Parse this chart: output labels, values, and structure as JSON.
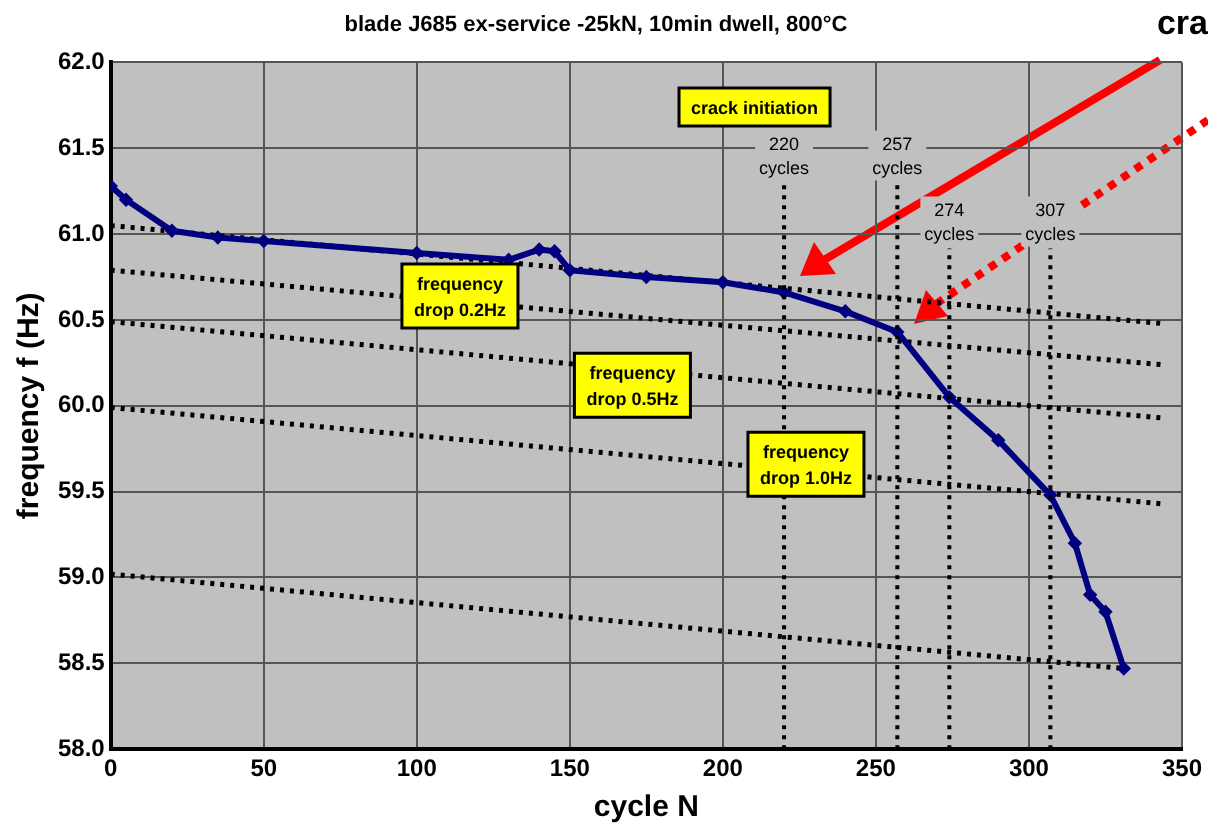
{
  "chart_data": {
    "type": "line",
    "title": "blade J685 ex-service -25kN, 10min dwell, 800°C",
    "xlabel": "cycle N",
    "ylabel": "frequency f (Hz)",
    "xlim": [
      0,
      350
    ],
    "xticks": [
      0,
      50,
      100,
      150,
      200,
      250,
      300,
      350
    ],
    "ylim": [
      58,
      62
    ],
    "yticks": [
      {
        "value": 58,
        "label": "58.0"
      },
      {
        "value": 58.5,
        "label": "58.5"
      },
      {
        "value": 59,
        "label": "59.0"
      },
      {
        "value": 59.5,
        "label": "59.5"
      },
      {
        "value": 60,
        "label": "60.0"
      },
      {
        "value": 60.5,
        "label": "60.5"
      },
      {
        "value": 61,
        "label": "61.0"
      },
      {
        "value": 61.5,
        "label": "61.5"
      },
      {
        "value": 62,
        "label": "62.0"
      }
    ],
    "grid": true,
    "legend": false,
    "series": [
      {
        "color": "#000080",
        "marker": "diamond",
        "line_style": "solid",
        "x": [
          0,
          5,
          20,
          35,
          50,
          100,
          130,
          140,
          145,
          150,
          175,
          200,
          220,
          240,
          257,
          274,
          290,
          307,
          315,
          320,
          325,
          331
        ],
        "values": [
          61.28,
          61.2,
          61.02,
          60.98,
          60.96,
          60.89,
          60.85,
          60.91,
          60.9,
          60.79,
          60.75,
          60.72,
          60.66,
          60.55,
          60.43,
          60.05,
          59.8,
          59.48,
          59.2,
          58.9,
          58.8,
          58.47
        ]
      },
      {
        "color": "#000000",
        "marker": "none",
        "line_style": "dotted",
        "x": [
          0,
          343
        ],
        "values": [
          61.05,
          60.48
        ]
      },
      {
        "color": "#000000",
        "marker": "none",
        "line_style": "dotted",
        "x": [
          0,
          343
        ],
        "values": [
          60.79,
          60.24
        ]
      },
      {
        "color": "#000000",
        "marker": "none",
        "line_style": "dotted",
        "x": [
          0,
          343
        ],
        "values": [
          60.49,
          59.93
        ]
      },
      {
        "color": "#000000",
        "marker": "none",
        "line_style": "dotted",
        "x": [
          0,
          343
        ],
        "values": [
          59.99,
          59.43
        ]
      },
      {
        "color": "#000000",
        "marker": "none",
        "line_style": "dotted",
        "x": [
          0,
          331
        ],
        "values": [
          59.02,
          58.47
        ]
      }
    ],
    "ref_lines": [
      {
        "axis": "x",
        "value": 220,
        "label": "220 cycles",
        "line_style": "dotted",
        "color": "#000000"
      },
      {
        "axis": "x",
        "value": 257,
        "label": "257 cycles",
        "line_style": "dotted",
        "color": "#000000"
      },
      {
        "axis": "x",
        "value": 274,
        "label": "274 cycles",
        "line_style": "dotted",
        "color": "#000000"
      },
      {
        "axis": "x",
        "value": 307,
        "label": "307 cycles",
        "line_style": "dotted",
        "color": "#000000"
      }
    ],
    "annotations": [
      "crack initiation",
      "frequency drop 0.2Hz",
      "frequency drop 0.5Hz",
      "frequency drop 1.0Hz",
      "cra"
    ]
  }
}
